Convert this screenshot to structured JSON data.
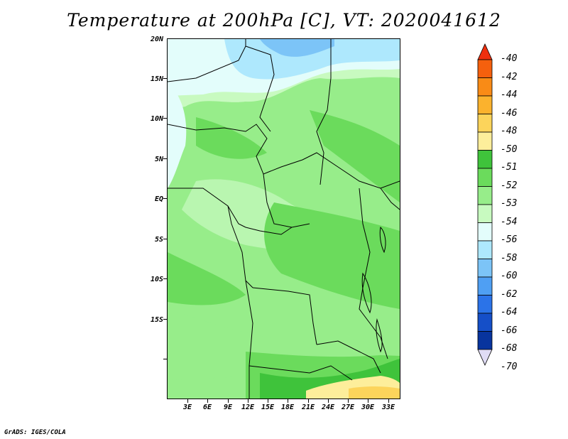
{
  "title": "Temperature at 200hPa [C], VT: 2020041612",
  "lat_labels": [
    "20N",
    "15N",
    "10N",
    "5N",
    "EQ",
    "5S",
    "10S",
    "15S"
  ],
  "lon_labels": [
    "3E",
    "6E",
    "9E",
    "12E",
    "15E",
    "18E",
    "21E",
    "24E",
    "27E",
    "30E",
    "33E"
  ],
  "colorbar": {
    "labels": [
      "-40",
      "-42",
      "-44",
      "-46",
      "-48",
      "-50",
      "-51",
      "-52",
      "-53",
      "-54",
      "-56",
      "-58",
      "-60",
      "-62",
      "-64",
      "-66",
      "-68",
      "-70"
    ],
    "colors": [
      "#ef2f0e",
      "#f5600d",
      "#f98b16",
      "#fbb22d",
      "#fcd45b",
      "#fdee9b",
      "#3fc33b",
      "#6bdb5c",
      "#97ed8a",
      "#c8fac0",
      "#e3fdfb",
      "#aee8fd",
      "#7cc4f7",
      "#4f9ff3",
      "#2b73e8",
      "#154fc8",
      "#08349e",
      "#1a0a6e"
    ]
  },
  "footer": "GrADS: IGES/COLA"
}
